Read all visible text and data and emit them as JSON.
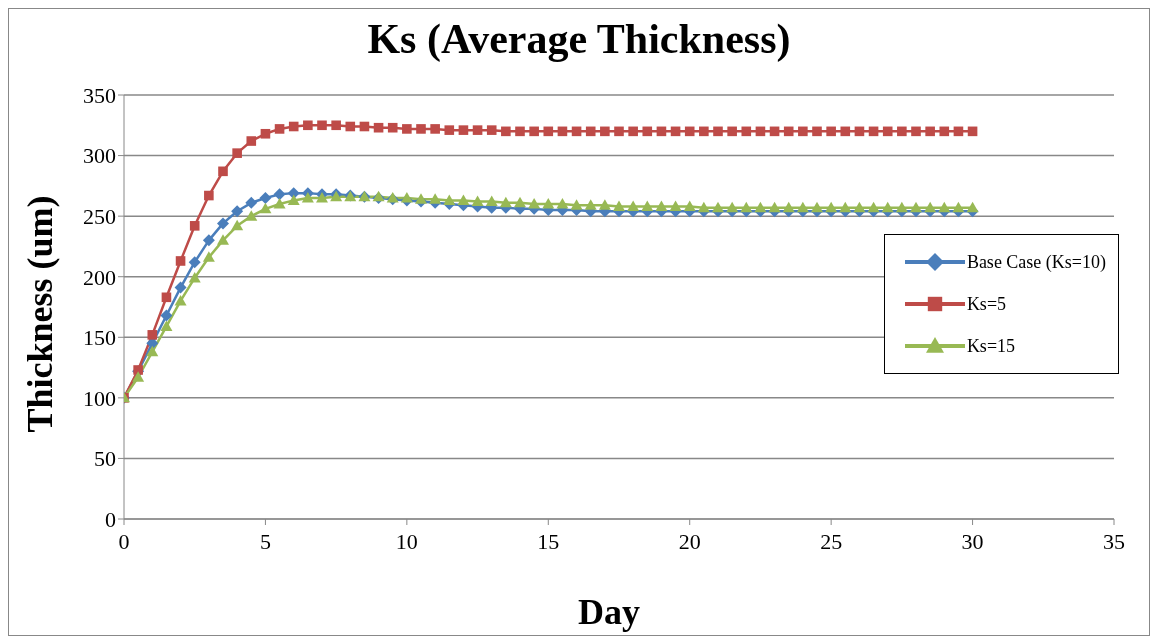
{
  "chart_data": {
    "type": "line",
    "title": "Ks (Average Thickness)",
    "xlabel": "Day",
    "ylabel": "Thickness (um)",
    "x": [
      0,
      0.5,
      1,
      1.5,
      2,
      2.5,
      3,
      3.5,
      4,
      4.5,
      5,
      5.5,
      6,
      6.5,
      7,
      7.5,
      8,
      8.5,
      9,
      9.5,
      10,
      10.5,
      11,
      11.5,
      12,
      12.5,
      13,
      13.5,
      14,
      14.5,
      15,
      15.5,
      16,
      16.5,
      17,
      17.5,
      18,
      18.5,
      19,
      19.5,
      20,
      20.5,
      21,
      21.5,
      22,
      22.5,
      23,
      23.5,
      24,
      24.5,
      25,
      25.5,
      26,
      26.5,
      27,
      27.5,
      28,
      28.5,
      29,
      29.5,
      30
    ],
    "series": [
      {
        "name": "Base Case (Ks=10)",
        "color": "#4a7ebb",
        "marker": "diamond",
        "values": [
          100,
          122,
          145,
          168,
          191,
          212,
          230,
          244,
          254,
          261,
          265,
          268,
          269,
          269,
          268,
          268,
          267,
          266,
          265,
          264,
          263,
          262,
          261,
          260,
          259,
          258,
          257,
          257,
          256,
          256,
          255,
          255,
          255,
          254,
          254,
          254,
          254,
          254,
          254,
          254,
          254,
          254,
          254,
          254,
          254,
          254,
          254,
          254,
          254,
          254,
          254,
          254,
          254,
          254,
          254,
          254,
          254,
          254,
          254,
          254,
          254
        ]
      },
      {
        "name": "Ks=5",
        "color": "#be4b48",
        "marker": "square",
        "values": [
          100,
          123,
          152,
          183,
          213,
          242,
          267,
          287,
          302,
          312,
          318,
          322,
          324,
          325,
          325,
          325,
          324,
          324,
          323,
          323,
          322,
          322,
          322,
          321,
          321,
          321,
          321,
          320,
          320,
          320,
          320,
          320,
          320,
          320,
          320,
          320,
          320,
          320,
          320,
          320,
          320,
          320,
          320,
          320,
          320,
          320,
          320,
          320,
          320,
          320,
          320,
          320,
          320,
          320,
          320,
          320,
          320,
          320,
          320,
          320,
          320
        ]
      },
      {
        "name": "Ks=15",
        "color": "#98b954",
        "marker": "triangle",
        "values": [
          100,
          117,
          138,
          159,
          180,
          199,
          216,
          230,
          242,
          250,
          256,
          260,
          263,
          265,
          265,
          266,
          266,
          266,
          266,
          265,
          265,
          264,
          264,
          263,
          263,
          262,
          262,
          261,
          261,
          260,
          260,
          260,
          259,
          259,
          259,
          258,
          258,
          258,
          258,
          258,
          258,
          257,
          257,
          257,
          257,
          257,
          257,
          257,
          257,
          257,
          257,
          257,
          257,
          257,
          257,
          257,
          257,
          257,
          257,
          257,
          257
        ]
      }
    ],
    "xlim": [
      0,
      35
    ],
    "xticks": [
      0,
      5,
      10,
      15,
      20,
      25,
      30,
      35
    ],
    "ylim": [
      0,
      350
    ],
    "yticks": [
      0,
      50,
      100,
      150,
      200,
      250,
      300,
      350
    ],
    "grid": "y",
    "legend": "right"
  }
}
